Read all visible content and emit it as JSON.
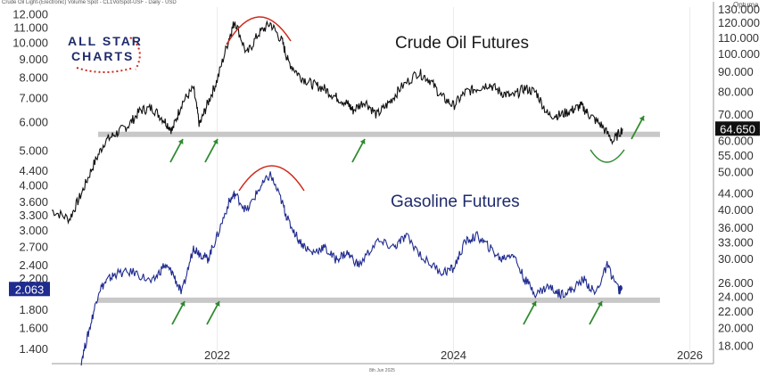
{
  "header": {
    "symbol_line": "Crude Oil Light-(Electronic) Volume Spot - CL1VolSpot-USF - Daily - USD",
    "brand": "Optuma",
    "footer_date": "8th Jun 2025"
  },
  "logo": {
    "line1": "ALL STAR",
    "line2": "CHARTS"
  },
  "chart_data": {
    "type": "line",
    "x_axis": {
      "ticks": [
        "2022",
        "2024",
        "2026"
      ],
      "range": [
        2020.6,
        2026.2
      ]
    },
    "left_axis": {
      "scale": "log",
      "range": [
        1.3,
        12.6
      ],
      "ticks": [
        "1.400",
        "1.600",
        "1.800",
        "2.200",
        "2.400",
        "2.700",
        "3.000",
        "3.300",
        "3.600",
        "4.000",
        "4.400",
        "5.000",
        "6.000",
        "7.000",
        "8.000",
        "9.000",
        "10.000",
        "11.000",
        "12.000"
      ]
    },
    "right_axis": {
      "scale": "log",
      "range": [
        16.5,
        132
      ],
      "ticks": [
        "18.000",
        "20.000",
        "22.000",
        "24.000",
        "26.000",
        "30.000",
        "33.000",
        "36.000",
        "40.000",
        "44.000",
        "50.000",
        "55.000",
        "60.000",
        "70.000",
        "80.000",
        "90.000",
        "100.000",
        "110.000",
        "120.000",
        "130.000"
      ]
    },
    "series": [
      {
        "name": "Crude Oil Futures",
        "axis": "right",
        "color": "#111111",
        "last_value": "64.650",
        "support_level": 62.5,
        "x": [
          2020.6,
          2020.75,
          2020.85,
          2020.95,
          2021.05,
          2021.15,
          2021.25,
          2021.35,
          2021.45,
          2021.55,
          2021.62,
          2021.7,
          2021.8,
          2021.85,
          2021.92,
          2022.0,
          2022.1,
          2022.15,
          2022.25,
          2022.35,
          2022.45,
          2022.55,
          2022.6,
          2022.7,
          2022.8,
          2022.9,
          2023.0,
          2023.1,
          2023.15,
          2023.25,
          2023.35,
          2023.45,
          2023.55,
          2023.7,
          2023.8,
          2023.9,
          2024.0,
          2024.1,
          2024.2,
          2024.3,
          2024.4,
          2024.5,
          2024.6,
          2024.7,
          2024.8,
          2024.9,
          2025.0,
          2025.08,
          2025.15,
          2025.25,
          2025.35,
          2025.43
        ],
        "y": [
          40,
          38,
          44,
          52,
          60,
          63,
          66,
          72,
          73,
          68,
          64,
          75,
          82,
          66,
          75,
          86,
          110,
          122,
          100,
          113,
          120,
          108,
          96,
          88,
          84,
          82,
          78,
          75,
          72,
          76,
          70,
          75,
          82,
          90,
          86,
          78,
          74,
          80,
          82,
          84,
          80,
          78,
          82,
          80,
          70,
          70,
          72,
          74,
          70,
          66,
          60,
          64.65
        ]
      },
      {
        "name": "Gasoline Futures",
        "axis": "left",
        "color": "#1f2b8f",
        "last_value": "2.063",
        "support_level": 1.92,
        "x": [
          2020.85,
          2020.92,
          2021.0,
          2021.08,
          2021.15,
          2021.3,
          2021.45,
          2021.55,
          2021.62,
          2021.7,
          2021.8,
          2021.85,
          2021.92,
          2022.0,
          2022.1,
          2022.15,
          2022.25,
          2022.35,
          2022.45,
          2022.55,
          2022.6,
          2022.7,
          2022.8,
          2022.9,
          2023.0,
          2023.1,
          2023.2,
          2023.35,
          2023.5,
          2023.6,
          2023.75,
          2023.9,
          2024.0,
          2024.1,
          2024.2,
          2024.3,
          2024.4,
          2024.5,
          2024.6,
          2024.7,
          2024.8,
          2024.9,
          2025.0,
          2025.1,
          2025.2,
          2025.3,
          2025.4,
          2025.43
        ],
        "y": [
          1.3,
          1.6,
          2.05,
          2.2,
          2.28,
          2.3,
          2.15,
          2.4,
          2.3,
          2.0,
          2.7,
          2.6,
          2.5,
          2.9,
          3.6,
          3.8,
          3.4,
          3.9,
          4.3,
          3.6,
          3.2,
          2.8,
          2.6,
          2.7,
          2.5,
          2.6,
          2.4,
          2.8,
          2.7,
          2.9,
          2.5,
          2.3,
          2.35,
          2.8,
          2.9,
          2.7,
          2.5,
          2.6,
          2.2,
          2.0,
          2.1,
          2.0,
          2.05,
          2.2,
          2.0,
          2.4,
          2.05,
          2.063
        ]
      }
    ],
    "annotations": {
      "arc_color": "#cc2b1d",
      "arrow_color": "#2e8a2e",
      "band_color": "#c8c8c8"
    }
  },
  "titles": {
    "crude": "Crude Oil Futures",
    "gasoline": "Gasoline Futures"
  }
}
